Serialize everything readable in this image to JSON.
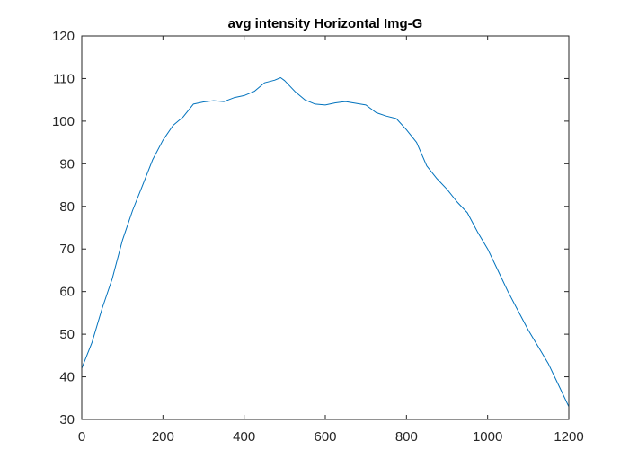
{
  "chart_data": {
    "type": "line",
    "title": "avg intensity Horizontal Img-G",
    "xlabel": "",
    "ylabel": "",
    "xlim": [
      0,
      1200
    ],
    "ylim": [
      30,
      120
    ],
    "xticks": [
      0,
      200,
      400,
      600,
      800,
      1000,
      1200
    ],
    "yticks": [
      30,
      40,
      50,
      60,
      70,
      80,
      90,
      100,
      110,
      120
    ],
    "grid": false,
    "series": [
      {
        "color": "#0072BD",
        "x": [
          0,
          25,
          50,
          75,
          100,
          125,
          150,
          175,
          200,
          225,
          250,
          275,
          300,
          325,
          350,
          375,
          400,
          425,
          450,
          475,
          490,
          500,
          525,
          550,
          575,
          600,
          625,
          650,
          675,
          700,
          725,
          750,
          775,
          800,
          825,
          850,
          875,
          900,
          925,
          950,
          975,
          1000,
          1025,
          1050,
          1075,
          1100,
          1125,
          1150,
          1175,
          1200
        ],
        "y": [
          42,
          48,
          56,
          63,
          72,
          79,
          85,
          91,
          95.5,
          99,
          101,
          104,
          104.5,
          104.8,
          104.6,
          105.5,
          106,
          107,
          109,
          109.6,
          110.2,
          109.5,
          107,
          105,
          104,
          103.8,
          104.3,
          104.6,
          104.2,
          103.8,
          102,
          101.2,
          100.6,
          98,
          95,
          89.5,
          86.5,
          84,
          81,
          78.5,
          74,
          70,
          65,
          60,
          55.5,
          51,
          47,
          43,
          38,
          33
        ]
      }
    ]
  }
}
